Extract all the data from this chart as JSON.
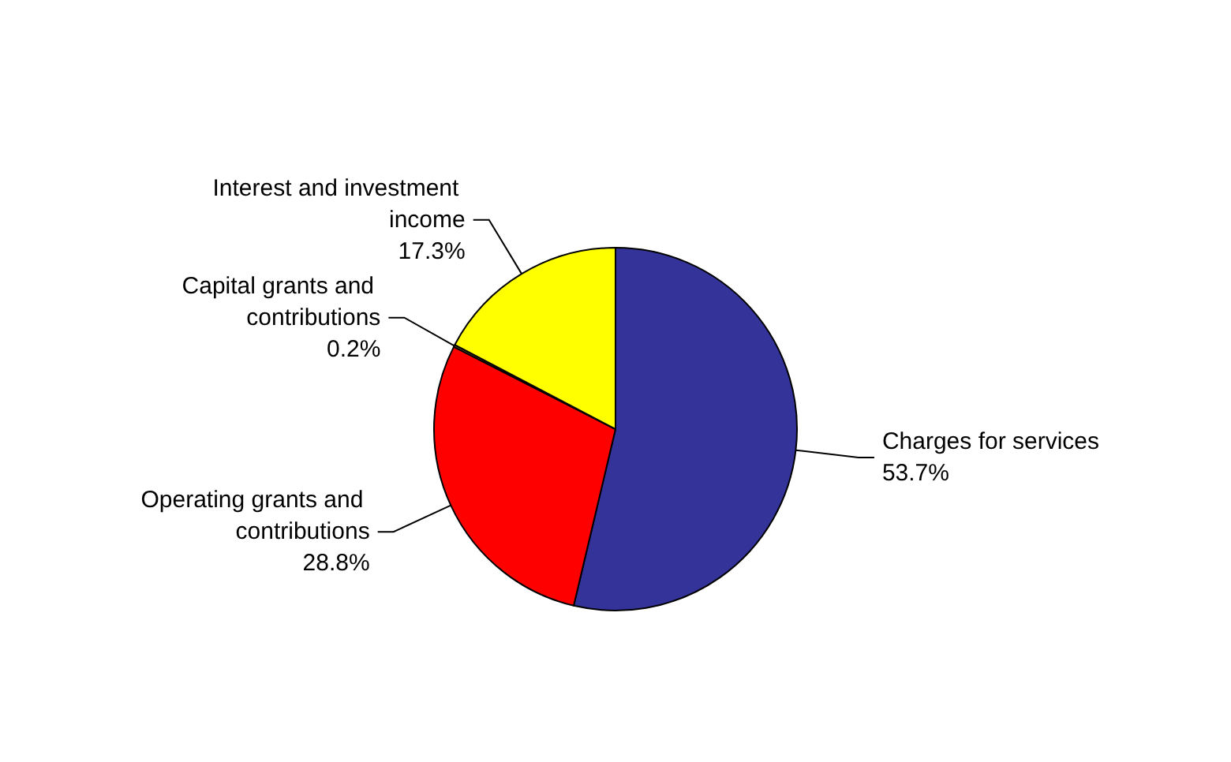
{
  "chart_data": {
    "type": "pie",
    "categories": [
      "Charges for services",
      "Operating grants and contributions",
      "Capital grants and contributions",
      "Interest and investment income"
    ],
    "values": [
      53.7,
      28.8,
      0.2,
      17.3
    ],
    "value_labels": [
      "53.7%",
      "28.8%",
      "0.2%",
      "17.3%"
    ],
    "colors": [
      "#333399",
      "#ff0000",
      "#666633",
      "#ffff00"
    ],
    "legend": false
  }
}
